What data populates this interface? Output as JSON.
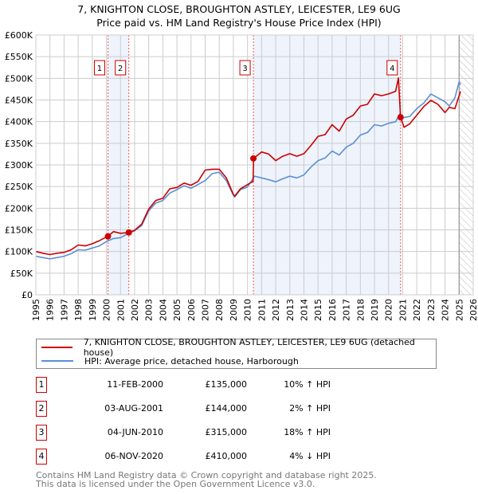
{
  "chart_data": {
    "type": "line",
    "title": "7, KNIGHTON CLOSE, BROUGHTON ASTLEY, LEICESTER, LE9 6UG",
    "subtitle": "Price paid vs. HM Land Registry's House Price Index (HPI)",
    "xlim": [
      1995,
      2026
    ],
    "ylim": [
      0,
      600000
    ],
    "grid": true,
    "x_ticks": [
      "1995",
      "1996",
      "1997",
      "1998",
      "1999",
      "2000",
      "2001",
      "2002",
      "2003",
      "2004",
      "2005",
      "2006",
      "2007",
      "2008",
      "2009",
      "2010",
      "2011",
      "2012",
      "2013",
      "2014",
      "2015",
      "2016",
      "2017",
      "2018",
      "2019",
      "2020",
      "2021",
      "2022",
      "2023",
      "2024",
      "2025",
      "2026"
    ],
    "y_ticks": [
      {
        "v": 0,
        "label": "£0"
      },
      {
        "v": 50000,
        "label": "£50K"
      },
      {
        "v": 100000,
        "label": "£100K"
      },
      {
        "v": 150000,
        "label": "£150K"
      },
      {
        "v": 200000,
        "label": "£200K"
      },
      {
        "v": 250000,
        "label": "£250K"
      },
      {
        "v": 300000,
        "label": "£300K"
      },
      {
        "v": 350000,
        "label": "£350K"
      },
      {
        "v": 400000,
        "label": "£400K"
      },
      {
        "v": 450000,
        "label": "£450K"
      },
      {
        "v": 500000,
        "label": "£500K"
      },
      {
        "v": 550000,
        "label": "£550K"
      },
      {
        "v": 600000,
        "label": "£600K"
      }
    ],
    "series": [
      {
        "name": "7, KNIGHTON CLOSE, BROUGHTON ASTLEY, LEICESTER, LE9 6UG (detached house)",
        "color": "#cc0000",
        "x": [
          1995,
          1995.5,
          1996,
          1996.5,
          1997,
          1997.5,
          1998,
          1998.5,
          1999,
          1999.5,
          2000.1,
          2000.5,
          2001,
          2001.6,
          2002,
          2002.5,
          2003,
          2003.5,
          2004,
          2004.5,
          2005,
          2005.5,
          2006,
          2006.5,
          2007,
          2007.5,
          2008,
          2008.5,
          2009,
          2009.1,
          2009.5,
          2010.4,
          2010.43,
          2011,
          2011.5,
          2012,
          2012.5,
          2013,
          2013.5,
          2014,
          2014.5,
          2015,
          2015.5,
          2016,
          2016.5,
          2017,
          2017.5,
          2018,
          2018.5,
          2019,
          2019.5,
          2020,
          2020.5,
          2020.7,
          2020.85,
          2021.1,
          2021.5,
          2022,
          2022.5,
          2023,
          2023.5,
          2024,
          2024.3,
          2024.7,
          2025.1
        ],
        "y": [
          100000,
          96000,
          93000,
          96000,
          98000,
          104000,
          115000,
          113000,
          118000,
          125000,
          135000,
          146000,
          142000,
          144000,
          149000,
          163000,
          198000,
          218000,
          223000,
          245000,
          248000,
          258000,
          253000,
          262000,
          288000,
          290000,
          290000,
          270000,
          232000,
          228000,
          245000,
          262000,
          315000,
          330000,
          325000,
          310000,
          320000,
          326000,
          320000,
          326000,
          345000,
          366000,
          370000,
          393000,
          378000,
          406000,
          415000,
          436000,
          440000,
          464000,
          460000,
          464000,
          470000,
          501000,
          410000,
          387000,
          395000,
          415000,
          435000,
          449000,
          440000,
          421000,
          433000,
          430000,
          470000
        ]
      },
      {
        "name": "HPI: Average price, detached house, Harborough",
        "color": "#5b8fd4",
        "x": [
          1995,
          1995.5,
          1996,
          1996.5,
          1997,
          1997.5,
          1998,
          1998.5,
          1999,
          1999.5,
          2000,
          2000.5,
          2001,
          2001.5,
          2002,
          2002.5,
          2003,
          2003.5,
          2004,
          2004.5,
          2005,
          2005.5,
          2006,
          2006.5,
          2007,
          2007.5,
          2008,
          2008.5,
          2009,
          2009.1,
          2009.5,
          2010,
          2010.5,
          2011,
          2011.5,
          2012,
          2012.5,
          2013,
          2013.5,
          2014,
          2014.5,
          2015,
          2015.5,
          2016,
          2016.5,
          2017,
          2017.5,
          2018,
          2018.5,
          2019,
          2019.5,
          2020,
          2020.5,
          2020.8,
          2021,
          2021.5,
          2022,
          2022.5,
          2023,
          2023.5,
          2024,
          2024.3,
          2024.7,
          2025.0,
          2025.1
        ],
        "y": [
          89000,
          86000,
          83000,
          86000,
          89000,
          95000,
          104000,
          103000,
          108000,
          113000,
          123000,
          130000,
          132000,
          141000,
          148000,
          160000,
          194000,
          212000,
          218000,
          235000,
          243000,
          252000,
          246000,
          255000,
          264000,
          280000,
          283000,
          264000,
          230000,
          226000,
          243000,
          249000,
          274000,
          270000,
          266000,
          261000,
          268000,
          274000,
          270000,
          277000,
          295000,
          310000,
          316000,
          332000,
          323000,
          341000,
          350000,
          369000,
          375000,
          393000,
          390000,
          396000,
          400000,
          418000,
          409000,
          412000,
          430000,
          443000,
          464000,
          455000,
          446000,
          436000,
          455000,
          492000,
          485000
        ]
      }
    ],
    "sales": [
      {
        "n": "1",
        "x": 2000.11,
        "y": 135000
      },
      {
        "n": "2",
        "x": 2001.59,
        "y": 144000
      },
      {
        "n": "3",
        "x": 2010.42,
        "y": 315000
      },
      {
        "n": "4",
        "x": 2020.85,
        "y": 410000
      }
    ],
    "forecast_from": 2025.0
  },
  "legend": {
    "property": "7, KNIGHTON CLOSE, BROUGHTON ASTLEY, LEICESTER, LE9 6UG (detached house)",
    "hpi": "HPI: Average price, detached house, Harborough"
  },
  "transactions": [
    {
      "n": "1",
      "date": "11-FEB-2000",
      "price": "£135,000",
      "hpi": "10% ↑ HPI"
    },
    {
      "n": "2",
      "date": "03-AUG-2001",
      "price": "£144,000",
      "hpi": "2% ↑ HPI"
    },
    {
      "n": "3",
      "date": "04-JUN-2010",
      "price": "£315,000",
      "hpi": "18% ↑ HPI"
    },
    {
      "n": "4",
      "date": "06-NOV-2020",
      "price": "£410,000",
      "hpi": "4% ↓ HPI"
    }
  ],
  "footer": {
    "line1": "Contains HM Land Registry data © Crown copyright and database right 2025.",
    "line2": "This data is licensed under the Open Government Licence v3.0."
  }
}
